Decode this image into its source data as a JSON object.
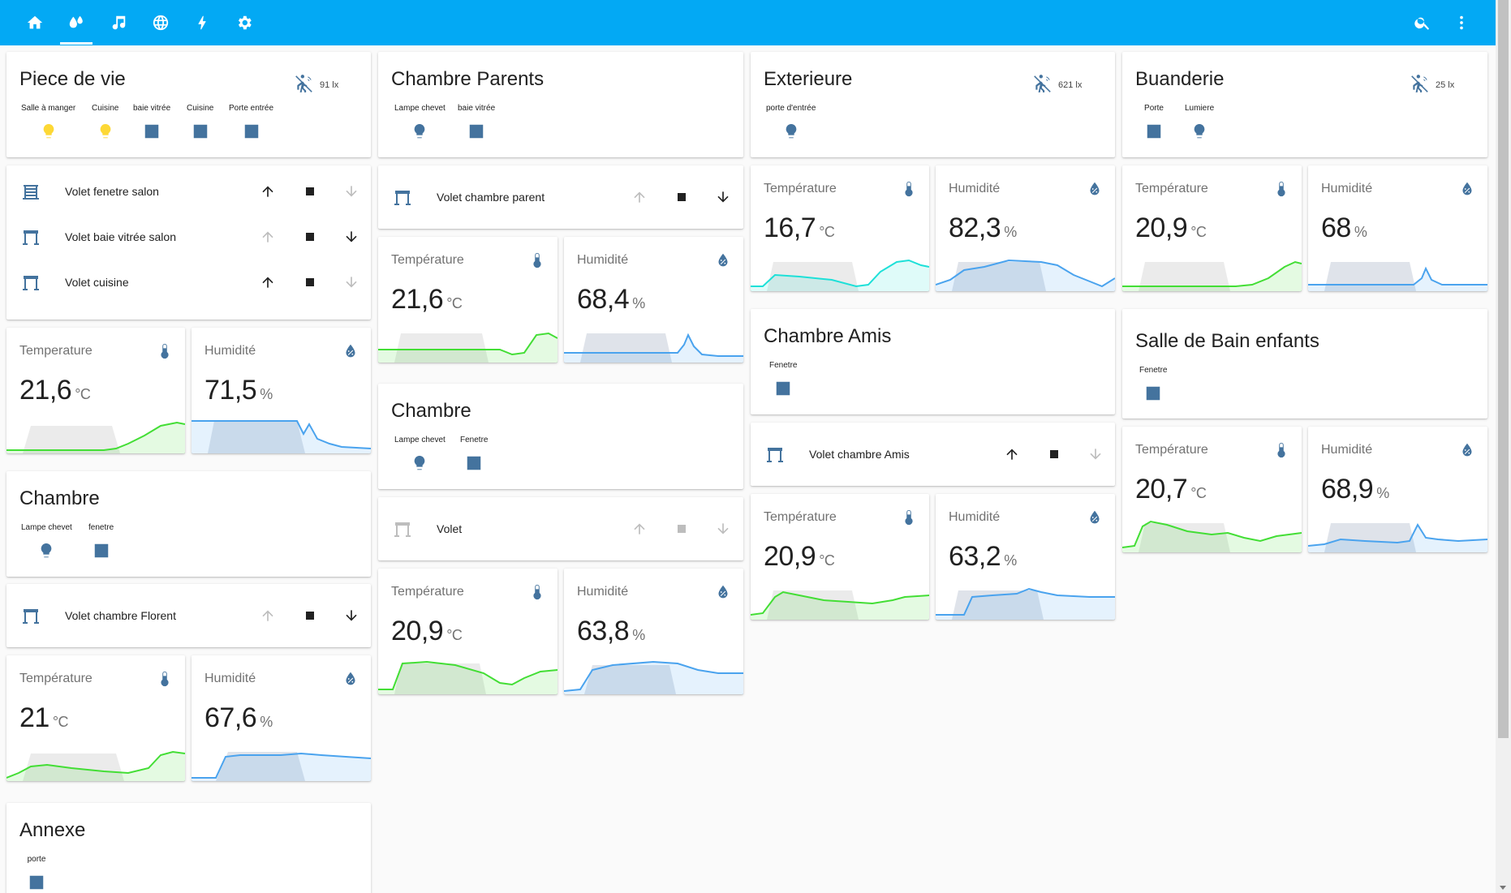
{
  "header": {
    "tabs": [
      {
        "name": "home-icon"
      },
      {
        "name": "water-drops-icon",
        "active": true
      },
      {
        "name": "music-note-icon"
      },
      {
        "name": "globe-icon"
      },
      {
        "name": "lightning-icon"
      },
      {
        "name": "gear-icon"
      }
    ],
    "actions": [
      {
        "name": "search-icon"
      },
      {
        "name": "more-vertical-icon"
      }
    ],
    "color": "#03a9f4"
  },
  "colors": {
    "accent_blue": "#44739e",
    "light_on": "#fdd835",
    "temperature_line": "#43de35",
    "humidity_line": "#4aa3ee",
    "exterior_temp_line": "#1de0d8"
  },
  "rooms": {
    "piece_de_vie": {
      "title": "Piece de vie",
      "lux": "91 lx",
      "entities": [
        "Salle à manger",
        "Cuisine",
        "baie vitrée",
        "Cuisine",
        "Porte entrée"
      ],
      "covers": [
        "Volet fenetre salon",
        "Volet baie vitrée salon",
        "Volet cuisine"
      ],
      "temp_label": "Temperature",
      "temp": "21,6",
      "temp_unit": "°C",
      "hum_label": "Humidité",
      "hum": "71,5",
      "hum_unit": "%"
    },
    "chambre_flo": {
      "title": "Chambre",
      "entities": [
        "Lampe chevet",
        "fenetre"
      ],
      "cover": "Volet chambre Florent",
      "temp_label": "Température",
      "temp": "21",
      "temp_unit": "°C",
      "hum_label": "Humidité",
      "hum": "67,6",
      "hum_unit": "%"
    },
    "annexe": {
      "title": "Annexe",
      "entities": [
        "porte"
      ]
    },
    "chambre_parents": {
      "title": "Chambre Parents",
      "entities": [
        "Lampe chevet",
        "baie vitrée"
      ],
      "cover": "Volet chambre parent",
      "temp_label": "Température",
      "temp": "21,6",
      "temp_unit": "°C",
      "hum_label": "Humidité",
      "hum": "68,4",
      "hum_unit": "%"
    },
    "chambre_2": {
      "title": "Chambre",
      "entities": [
        "Lampe chevet",
        "Fenetre"
      ],
      "cover": "Volet",
      "temp_label": "Température",
      "temp": "20,9",
      "temp_unit": "°C",
      "hum_label": "Humidité",
      "hum": "63,8",
      "hum_unit": "%"
    },
    "exterieure": {
      "title": "Exterieure",
      "lux": "621 lx",
      "entities": [
        "porte d'entrée"
      ],
      "temp_label": "Température",
      "temp": "16,7",
      "temp_unit": "°C",
      "hum_label": "Humidité",
      "hum": "82,3",
      "hum_unit": "%"
    },
    "chambre_amis": {
      "title": "Chambre Amis",
      "entities": [
        "Fenetre"
      ],
      "cover": "Volet chambre Amis",
      "temp_label": "Température",
      "temp": "20,9",
      "temp_unit": "°C",
      "hum_label": "Humidité",
      "hum": "63,2",
      "hum_unit": "%"
    },
    "buanderie": {
      "title": "Buanderie",
      "lux": "25 lx",
      "entities": [
        "Porte",
        "Lumiere"
      ],
      "temp_label": "Température",
      "temp": "20,9",
      "temp_unit": "°C",
      "hum_label": "Humidité",
      "hum": "68",
      "hum_unit": "%"
    },
    "sdb_enfants": {
      "title": "Salle de Bain enfants",
      "entities": [
        "Fenetre"
      ],
      "temp_label": "Température",
      "temp": "20,7",
      "temp_unit": "°C",
      "hum_label": "Humidité",
      "hum": "68,9",
      "hum_unit": "%"
    }
  }
}
